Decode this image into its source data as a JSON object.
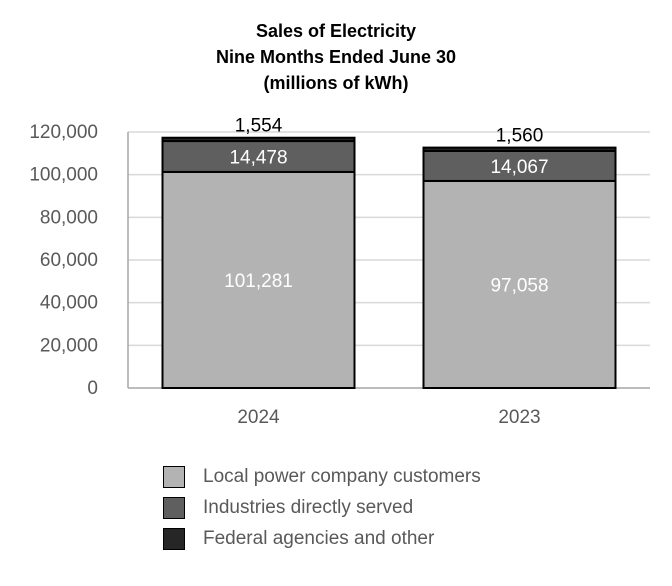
{
  "chart_data": {
    "type": "bar",
    "stacked": true,
    "title_lines": [
      "Sales of Electricity",
      "Nine Months Ended June 30",
      "(millions of kWh)"
    ],
    "categories": [
      "2024",
      "2023"
    ],
    "series": [
      {
        "name": "Local power company customers",
        "values": [
          101281,
          97058
        ],
        "labels": [
          "101,281",
          "97,058"
        ],
        "color": "#b3b3b3"
      },
      {
        "name": "Industries directly served",
        "values": [
          14478,
          14067
        ],
        "labels": [
          "14,478",
          "14,067"
        ],
        "color": "#5f5f5f"
      },
      {
        "name": "Federal agencies and other",
        "values": [
          1554,
          1560
        ],
        "labels": [
          "1,554",
          "1,560"
        ],
        "color": "#262626"
      }
    ],
    "ylim": [
      0,
      120000
    ],
    "yticks": [
      0,
      20000,
      40000,
      60000,
      80000,
      100000,
      120000
    ],
    "ytick_labels": [
      "0",
      "20,000",
      "40,000",
      "60,000",
      "80,000",
      "100,000",
      "120,000"
    ],
    "grid": true,
    "legend_position": "bottom"
  }
}
